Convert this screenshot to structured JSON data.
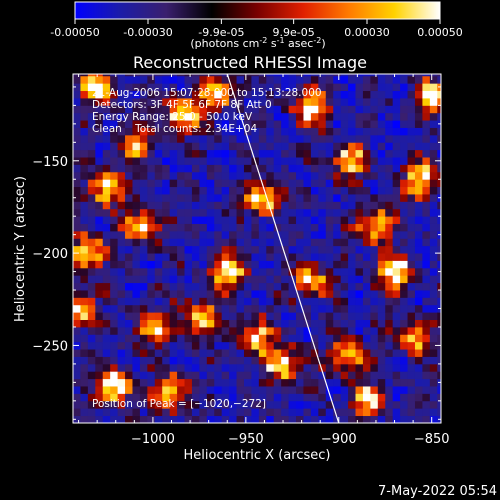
{
  "chart_data": [
    {
      "type": "colorbar",
      "tick_labels": [
        "-0.00050",
        "-0.00030",
        "-9.9e-05",
        "9.9e-05",
        "0.00030",
        "0.00050"
      ],
      "range": [
        -0.0005,
        0.0005
      ],
      "unit_label": {
        "prefix": "(photons cm",
        "sup1": "-2",
        "mid1": " s",
        "sup2": "-1",
        "mid2": " asec",
        "sup3": "-2",
        "suffix": ")"
      },
      "colors": [
        "#0000ff",
        "#1c1ca8",
        "#3a1f6e",
        "#000000",
        "#7a0000",
        "#e02000",
        "#ff7a00",
        "#ffd200",
        "#ffffff"
      ]
    },
    {
      "type": "heatmap",
      "title": "Reconstructed RHESSI Image",
      "xlabel": "Heliocentric X (arcsec)",
      "ylabel": "Heliocentric Y (arcsec)",
      "xlim": [
        -1043,
        -845
      ],
      "ylim": [
        -292,
        -103
      ],
      "x_ticks": [
        -1000,
        -950,
        -900,
        -850
      ],
      "x_tick_labels": [
        "−1000",
        "−950",
        "−900",
        "−850"
      ],
      "y_ticks": [
        -250,
        -200,
        -150
      ],
      "y_tick_labels": [
        "−250",
        "−200",
        "−150"
      ],
      "limb_line": [
        [
          -960,
          -103
        ],
        [
          -900,
          -292
        ]
      ],
      "info_lines": [
        "21-Aug-2006 15:07:28.000 to 15:13:28.000",
        "Detectors: 3F 4F 5F 6F 7F 8F Att 0",
        "Energy Range: 25.0 - 50.0 keV",
        "Clean    Total counts: 2.34E+04"
      ],
      "peak_label": "Position of Peak = [−1020,−272]",
      "peak_position": [
        -1020,
        -272
      ],
      "hotspots": [
        {
          "x": -1030,
          "y": -110,
          "v": 0.9
        },
        {
          "x": -985,
          "y": -125,
          "v": 0.95
        },
        {
          "x": -965,
          "y": -112,
          "v": 0.85
        },
        {
          "x": -1025,
          "y": -165,
          "v": 0.9
        },
        {
          "x": -1035,
          "y": -200,
          "v": 0.95
        },
        {
          "x": -1005,
          "y": -185,
          "v": 0.8
        },
        {
          "x": -1040,
          "y": -230,
          "v": 0.85
        },
        {
          "x": -1000,
          "y": -240,
          "v": 0.75
        },
        {
          "x": -975,
          "y": -235,
          "v": 0.9
        },
        {
          "x": -960,
          "y": -210,
          "v": 0.95
        },
        {
          "x": -1020,
          "y": -272,
          "v": 1.0
        },
        {
          "x": -990,
          "y": -275,
          "v": 0.85
        },
        {
          "x": -945,
          "y": -245,
          "v": 0.8
        },
        {
          "x": -940,
          "y": -170,
          "v": 0.85
        },
        {
          "x": -930,
          "y": -260,
          "v": 0.9
        },
        {
          "x": -915,
          "y": -120,
          "v": 0.9
        },
        {
          "x": -895,
          "y": -150,
          "v": 0.8
        },
        {
          "x": -880,
          "y": -185,
          "v": 0.85
        },
        {
          "x": -870,
          "y": -210,
          "v": 0.95
        },
        {
          "x": -855,
          "y": -160,
          "v": 0.9
        },
        {
          "x": -860,
          "y": -245,
          "v": 0.85
        },
        {
          "x": -895,
          "y": -255,
          "v": 0.9
        },
        {
          "x": -885,
          "y": -280,
          "v": 0.8
        },
        {
          "x": -915,
          "y": -215,
          "v": 0.8
        },
        {
          "x": -850,
          "y": -115,
          "v": 0.85
        },
        {
          "x": -1010,
          "y": -140,
          "v": 0.75
        }
      ]
    }
  ],
  "footer": {
    "timestamp": "7-May-2022 05:54"
  }
}
